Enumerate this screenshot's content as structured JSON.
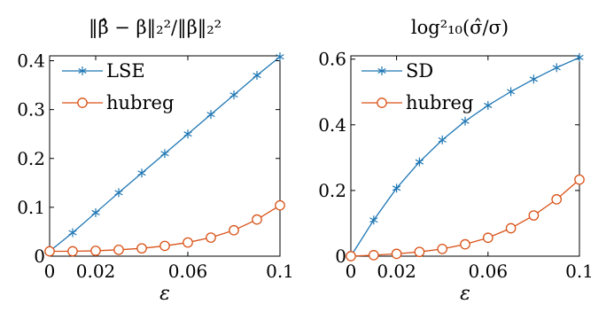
{
  "colors": {
    "series_blue": "#1f77b4",
    "series_orange": "#d95319"
  },
  "chart_data": [
    {
      "type": "line",
      "title": "‖β̂ − β‖₂²/‖β‖₂²",
      "xlabel": "ε",
      "ylabel": "",
      "xlim": [
        0,
        0.1
      ],
      "ylim": [
        0,
        0.41
      ],
      "xticks": [
        0,
        0.02,
        0.06,
        0.1
      ],
      "xtick_labels": [
        "0",
        "0.02",
        "0.06",
        "0.1"
      ],
      "yticks": [
        0,
        0.1,
        0.2,
        0.3,
        0.4
      ],
      "ytick_labels": [
        "0",
        "0.1",
        "0.2",
        "0.3",
        "0.4"
      ],
      "legend_position": "top-left",
      "grid": false,
      "x": [
        0,
        0.01,
        0.02,
        0.03,
        0.04,
        0.05,
        0.06,
        0.07,
        0.08,
        0.09,
        0.1
      ],
      "series": [
        {
          "name": "LSE",
          "marker": "asterisk",
          "color": "#1f77b4",
          "values": [
            0.01,
            0.048,
            0.089,
            0.13,
            0.17,
            0.21,
            0.25,
            0.29,
            0.33,
            0.37,
            0.408
          ]
        },
        {
          "name": "hubreg",
          "marker": "circle",
          "color": "#d95319",
          "values": [
            0.01,
            0.01,
            0.011,
            0.013,
            0.016,
            0.021,
            0.028,
            0.038,
            0.053,
            0.075,
            0.104
          ]
        }
      ]
    },
    {
      "type": "line",
      "title": "log²₁₀(σ̂/σ)",
      "xlabel": "ε",
      "ylabel": "",
      "xlim": [
        0,
        0.1
      ],
      "ylim": [
        0,
        0.61
      ],
      "xticks": [
        0,
        0.02,
        0.06,
        0.1
      ],
      "xtick_labels": [
        "0",
        "0.02",
        "0.06",
        "0.1"
      ],
      "yticks": [
        0,
        0.2,
        0.4,
        0.6
      ],
      "ytick_labels": [
        "0",
        "0.2",
        "0.4",
        "0.6"
      ],
      "legend_position": "top-left",
      "grid": false,
      "x": [
        0,
        0.01,
        0.02,
        0.03,
        0.04,
        0.05,
        0.06,
        0.07,
        0.08,
        0.09,
        0.1
      ],
      "series": [
        {
          "name": "SD",
          "marker": "asterisk",
          "color": "#1f77b4",
          "values": [
            0.0,
            0.11,
            0.207,
            0.287,
            0.354,
            0.411,
            0.459,
            0.501,
            0.539,
            0.574,
            0.605
          ]
        },
        {
          "name": "hubreg",
          "marker": "circle",
          "color": "#d95319",
          "values": [
            0.0,
            0.003,
            0.007,
            0.013,
            0.022,
            0.036,
            0.056,
            0.085,
            0.124,
            0.173,
            0.233
          ]
        }
      ]
    }
  ]
}
